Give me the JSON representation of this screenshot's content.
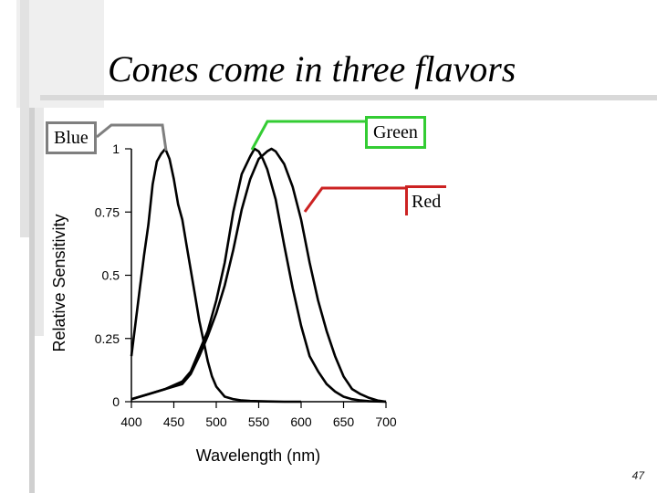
{
  "slide": {
    "title": "Cones come in three flavors",
    "page_number": "47"
  },
  "callouts": {
    "blue": {
      "label": "Blue",
      "color": "#7f7f7f"
    },
    "green": {
      "label": "Green",
      "color": "#33cc33"
    },
    "red": {
      "label": "Red",
      "color": "#cc2222"
    }
  },
  "chart_data": {
    "type": "line",
    "title": "",
    "xlabel": "Wavelength (nm)",
    "ylabel": "Relative Sensitivity",
    "xlim": [
      400,
      700
    ],
    "ylim": [
      0,
      1
    ],
    "xticks": [
      400,
      450,
      500,
      550,
      600,
      650,
      700
    ],
    "xtick_labels": [
      "400",
      "450",
      "500",
      "550",
      "600",
      "650",
      "700"
    ],
    "yticks": [
      0,
      0.25,
      0.5,
      0.75,
      1
    ],
    "ytick_labels": [
      "0",
      "0.25",
      "0.5",
      "0.75",
      "1"
    ],
    "grid": false,
    "series": [
      {
        "x": [
          400,
          410,
          415,
          420,
          425,
          430,
          435,
          440,
          445,
          450,
          455,
          460,
          465,
          470,
          475,
          480,
          485,
          490,
          495,
          500,
          505,
          510,
          520,
          530,
          540,
          550,
          560,
          580,
          600
        ],
        "y": [
          0.18,
          0.45,
          0.58,
          0.7,
          0.86,
          0.95,
          0.98,
          1.0,
          0.96,
          0.88,
          0.78,
          0.72,
          0.62,
          0.52,
          0.42,
          0.32,
          0.24,
          0.16,
          0.1,
          0.06,
          0.04,
          0.02,
          0.01,
          0.005,
          0.003,
          0.002,
          0.001,
          0.0,
          0.0
        ]
      },
      {
        "x": [
          400,
          420,
          440,
          460,
          470,
          480,
          490,
          500,
          510,
          520,
          530,
          540,
          545,
          550,
          555,
          560,
          570,
          580,
          590,
          600,
          610,
          620,
          630,
          640,
          650,
          660,
          670,
          680,
          690,
          700
        ],
        "y": [
          0.01,
          0.03,
          0.05,
          0.08,
          0.12,
          0.2,
          0.28,
          0.4,
          0.55,
          0.75,
          0.9,
          0.97,
          1.0,
          0.99,
          0.96,
          0.92,
          0.8,
          0.62,
          0.45,
          0.3,
          0.18,
          0.12,
          0.07,
          0.04,
          0.02,
          0.01,
          0.005,
          0.002,
          0.001,
          0.0
        ]
      },
      {
        "x": [
          400,
          420,
          440,
          460,
          470,
          480,
          490,
          500,
          510,
          520,
          530,
          540,
          550,
          560,
          565,
          570,
          580,
          590,
          600,
          610,
          620,
          630,
          640,
          650,
          660,
          670,
          680,
          690,
          700
        ],
        "y": [
          0.01,
          0.03,
          0.05,
          0.07,
          0.11,
          0.18,
          0.26,
          0.35,
          0.46,
          0.6,
          0.76,
          0.88,
          0.96,
          0.99,
          1.0,
          0.99,
          0.94,
          0.85,
          0.72,
          0.55,
          0.4,
          0.28,
          0.18,
          0.1,
          0.05,
          0.03,
          0.015,
          0.005,
          0.0
        ]
      }
    ]
  }
}
